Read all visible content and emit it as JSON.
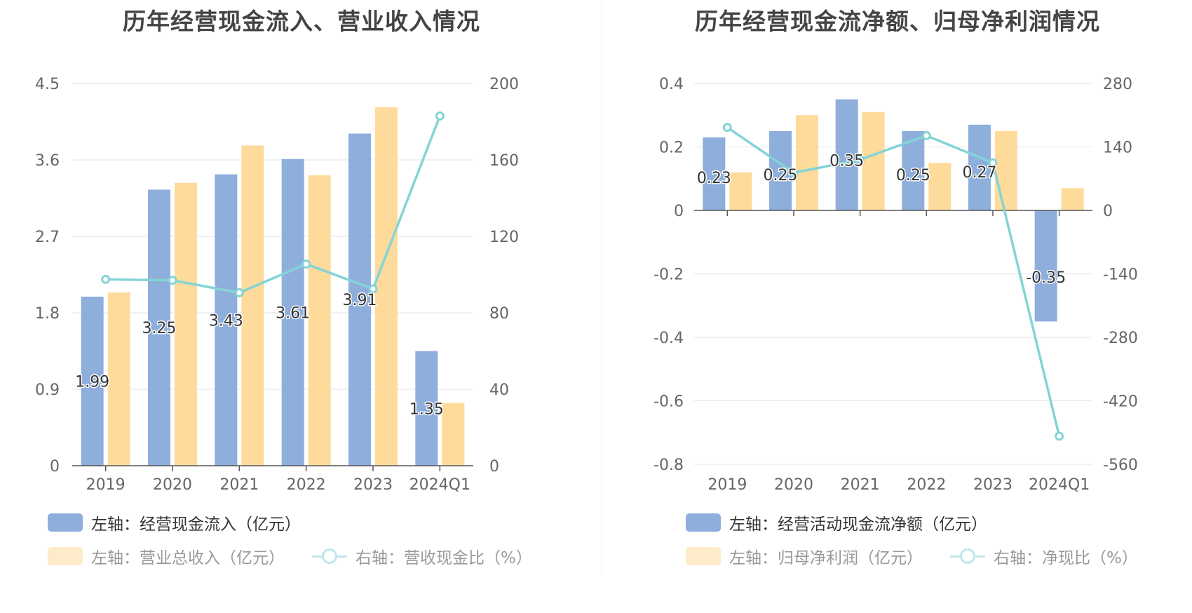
{
  "colors": {
    "bar_blue": "#8eaedc",
    "bar_orange": "#fedb9b",
    "line_teal": "#84d4d6",
    "grid": "#dfe3ee",
    "axis": "#555555"
  },
  "chart_data": [
    {
      "type": "bar",
      "title": "历年经营现金流入、营业收入情况",
      "categories": [
        "2019",
        "2020",
        "2021",
        "2022",
        "2023",
        "2024Q1"
      ],
      "left_axis": {
        "ticks": [
          "0",
          "0.9",
          "1.8",
          "2.7",
          "3.6",
          "4.5"
        ],
        "ylim": [
          0,
          4.5
        ]
      },
      "right_axis": {
        "ticks": [
          "0",
          "40",
          "80",
          "120",
          "160",
          "200"
        ],
        "ylim": [
          0,
          200
        ]
      },
      "series": [
        {
          "name": "左轴：经营现金流入（亿元）",
          "kind": "bar",
          "axis": "left",
          "values": [
            1.99,
            3.25,
            3.43,
            3.61,
            3.91,
            1.35
          ],
          "labels": [
            "1.99",
            "3.25",
            "3.43",
            "3.61",
            "3.91",
            "1.35"
          ]
        },
        {
          "name": "左轴：营业总收入（亿元）",
          "kind": "bar",
          "axis": "left",
          "values": [
            2.04,
            3.33,
            3.77,
            3.42,
            4.22,
            0.74
          ]
        },
        {
          "name": "右轴：营收现金比（%）",
          "kind": "line",
          "axis": "right",
          "values": [
            97.5,
            97.0,
            90.5,
            105.5,
            92.5,
            183.0
          ]
        }
      ],
      "grid": true,
      "legend_position": "bottom"
    },
    {
      "type": "bar",
      "title": "历年经营现金流净额、归母净利润情况",
      "categories": [
        "2019",
        "2020",
        "2021",
        "2022",
        "2023",
        "2024Q1"
      ],
      "left_axis": {
        "ticks": [
          "-0.8",
          "-0.6",
          "-0.4",
          "-0.2",
          "0",
          "0.2",
          "0.4"
        ],
        "ylim": [
          -0.8,
          0.4
        ]
      },
      "right_axis": {
        "ticks": [
          "-560",
          "-420",
          "-280",
          "-140",
          "0",
          "140",
          "280"
        ],
        "ylim": [
          -560,
          280
        ]
      },
      "series": [
        {
          "name": "左轴：经营活动现金流净额（亿元）",
          "kind": "bar",
          "axis": "left",
          "values": [
            0.23,
            0.25,
            0.35,
            0.25,
            0.27,
            -0.35
          ],
          "labels": [
            "0.23",
            "0.25",
            "0.35",
            "0.25",
            "0.27",
            "-0.35"
          ]
        },
        {
          "name": "左轴：归母净利润（亿元）",
          "kind": "bar",
          "axis": "left",
          "values": [
            0.12,
            0.3,
            0.31,
            0.15,
            0.25,
            0.07
          ]
        },
        {
          "name": "右轴：净现比（%）",
          "kind": "line",
          "axis": "right",
          "values": [
            183,
            83,
            112,
            165,
            105,
            -498
          ]
        }
      ],
      "grid": true,
      "legend_position": "bottom"
    }
  ]
}
